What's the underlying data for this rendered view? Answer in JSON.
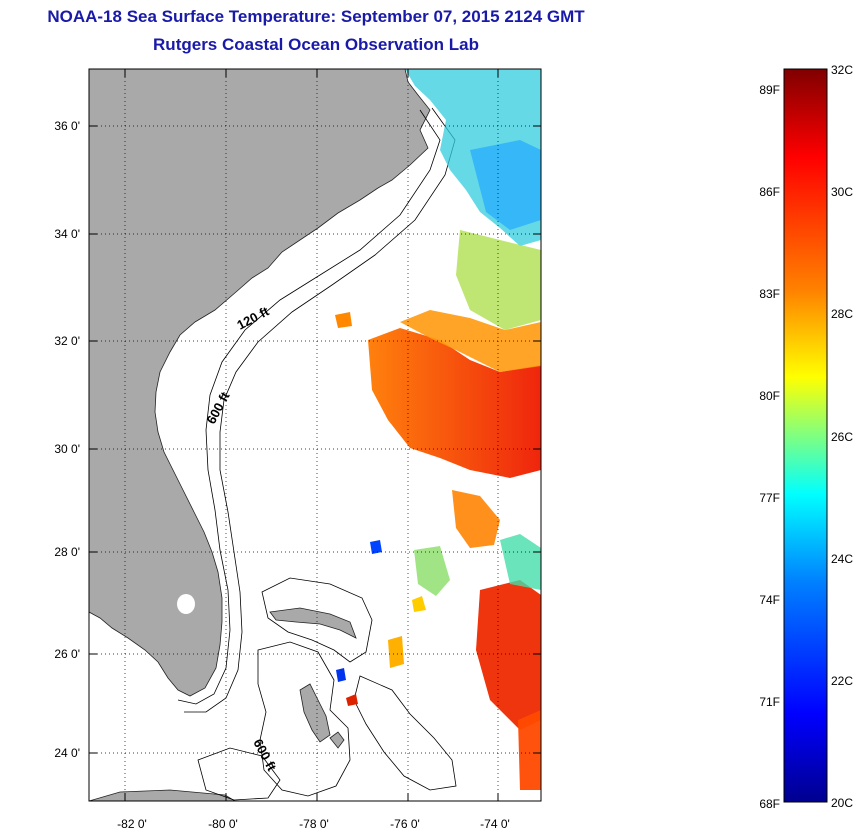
{
  "title_line1": "NOAA-18 Sea Surface Temperature:  September 07, 2015 2124 GMT",
  "title_line2": "Rutgers Coastal Ocean Observation Lab",
  "map": {
    "lon_labels": [
      "-82 0'",
      "-80 0'",
      "-78 0'",
      "-76 0'",
      "-74 0'"
    ],
    "lat_labels": [
      "36 0'",
      "34 0'",
      "32 0'",
      "30 0'",
      "28 0'",
      "26 0'",
      "24 0'"
    ],
    "contour_labels": [
      "120 ft",
      "600 ft",
      "600 ft"
    ],
    "land_color": "#a9a9a9",
    "ocean_color": "#ffffff"
  },
  "colorbar": {
    "fahrenheit_labels": [
      "89F",
      "86F",
      "83F",
      "80F",
      "77F",
      "74F",
      "71F",
      "68F"
    ],
    "celsius_labels": [
      "32C",
      "30C",
      "28C",
      "26C",
      "24C",
      "22C",
      "20C"
    ],
    "colors": [
      "#00008f",
      "#0000ff",
      "#0080ff",
      "#00ffff",
      "#80ff80",
      "#ffff00",
      "#ff8000",
      "#ff0000",
      "#800000"
    ]
  }
}
